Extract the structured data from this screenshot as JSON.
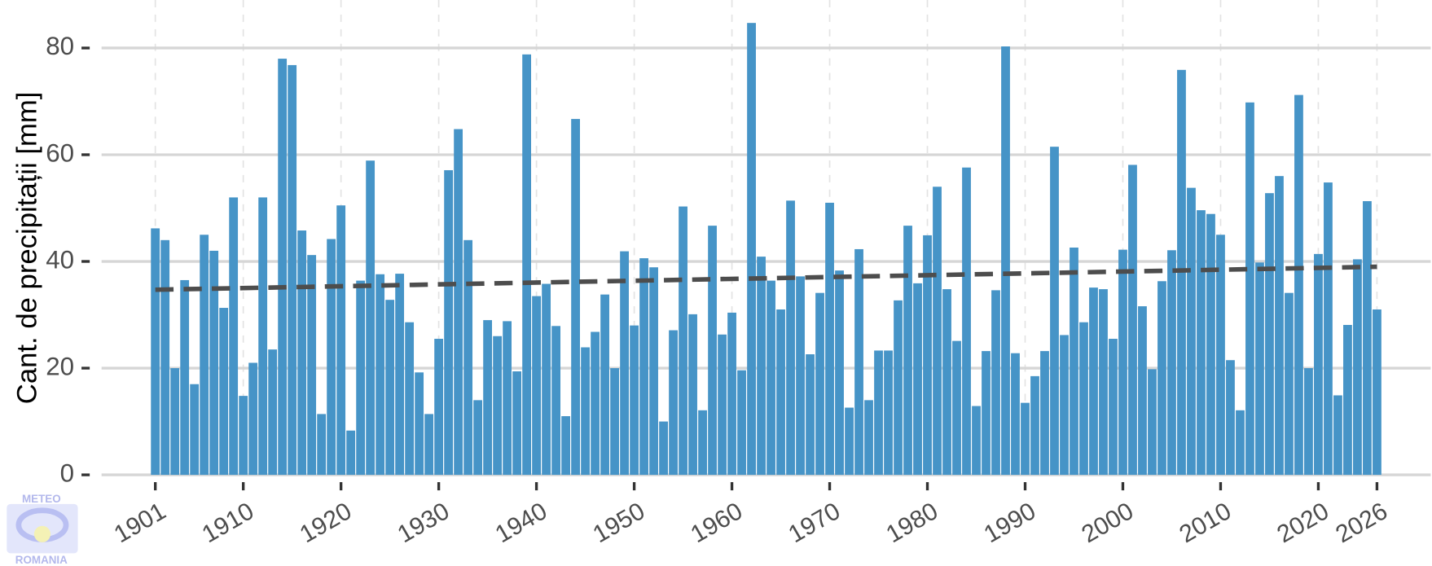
{
  "chart_data": {
    "type": "bar",
    "y_label": "Cant. de precipitații [mm]",
    "logo_top": "METEO",
    "logo_bottom": "ROMANIA",
    "color": "#4694c7",
    "x": [
      1901,
      1902,
      1903,
      1904,
      1905,
      1906,
      1907,
      1908,
      1909,
      1910,
      1911,
      1912,
      1913,
      1914,
      1915,
      1916,
      1917,
      1918,
      1919,
      1920,
      1921,
      1922,
      1923,
      1924,
      1925,
      1926,
      1927,
      1928,
      1929,
      1930,
      1931,
      1932,
      1933,
      1934,
      1935,
      1936,
      1937,
      1938,
      1939,
      1940,
      1941,
      1942,
      1943,
      1944,
      1945,
      1946,
      1947,
      1948,
      1949,
      1950,
      1951,
      1952,
      1953,
      1954,
      1955,
      1956,
      1957,
      1958,
      1959,
      1960,
      1961,
      1962,
      1963,
      1964,
      1965,
      1966,
      1967,
      1968,
      1969,
      1970,
      1971,
      1972,
      1973,
      1974,
      1975,
      1976,
      1977,
      1978,
      1979,
      1980,
      1981,
      1982,
      1983,
      1984,
      1985,
      1986,
      1987,
      1988,
      1989,
      1990,
      1991,
      1992,
      1993,
      1994,
      1995,
      1996,
      1997,
      1998,
      1999,
      2000,
      2001,
      2002,
      2003,
      2004,
      2005,
      2006,
      2007,
      2008,
      2009,
      2010,
      2011,
      2012,
      2013,
      2014,
      2015,
      2016,
      2017,
      2018,
      2019,
      2020,
      2021,
      2022,
      2023,
      2024,
      2025,
      2026
    ],
    "values": [
      46.2,
      44,
      20,
      36.5,
      17,
      45,
      42,
      31.3,
      52,
      14.8,
      21,
      52,
      23.5,
      78,
      76.8,
      45.8,
      41.2,
      11.4,
      44.2,
      50.5,
      8.3,
      36.4,
      58.9,
      37.6,
      32.8,
      37.7,
      28.6,
      19.2,
      11.4,
      25.5,
      57.1,
      64.8,
      44,
      14,
      29,
      26,
      28.8,
      19.4,
      78.8,
      33.5,
      35.8,
      27.9,
      11,
      66.7,
      23.9,
      26.8,
      33.8,
      20,
      41.9,
      28,
      40.6,
      38.9,
      10,
      27.1,
      50.3,
      30.1,
      12.1,
      46.7,
      26.3,
      30.4,
      19.6,
      84.7,
      40.9,
      36.4,
      31,
      51.4,
      37.2,
      22.6,
      34.1,
      51,
      38.3,
      12.6,
      42.3,
      14,
      23.3,
      23.3,
      32.7,
      46.7,
      35.9,
      44.9,
      54,
      34.8,
      25.1,
      57.6,
      12.9,
      23.2,
      34.6,
      80.3,
      22.8,
      13.5,
      18.5,
      23.2,
      61.5,
      26.2,
      42.6,
      28.6,
      35.1,
      34.8,
      25.5,
      42.2,
      58.1,
      31.6,
      19.8,
      36.3,
      42.1,
      75.9,
      53.8,
      49.6,
      48.9,
      45,
      21.5,
      12.1,
      69.8,
      39.8,
      52.8,
      56,
      34.1,
      71.2,
      20,
      41.4,
      54.8,
      14.9,
      28.1,
      40.4,
      51.3,
      31
    ],
    "trend": {
      "x": [
        1901,
        2026
      ],
      "values": [
        34.7,
        39.0
      ],
      "color": "#4d4d4d"
    },
    "xlim": [
      1895.5,
      2031.5
    ],
    "xticks": [
      1901,
      1910,
      1920,
      1930,
      1940,
      1950,
      1960,
      1970,
      1980,
      1990,
      2000,
      2010,
      2020,
      2026
    ],
    "ylim": [
      0,
      89
    ],
    "yticks": [
      0,
      20,
      40,
      60,
      80
    ],
    "grid": true
  }
}
